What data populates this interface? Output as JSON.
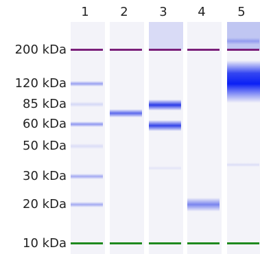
{
  "lanes": [
    "1",
    "2",
    "3",
    "4",
    "5"
  ],
  "markers": [
    "200 kDa",
    "120 kDa",
    "85 kDa",
    "60 kDa",
    "50 kDa",
    "30 kDa",
    "20 kDa",
    "10 kDa"
  ]
}
